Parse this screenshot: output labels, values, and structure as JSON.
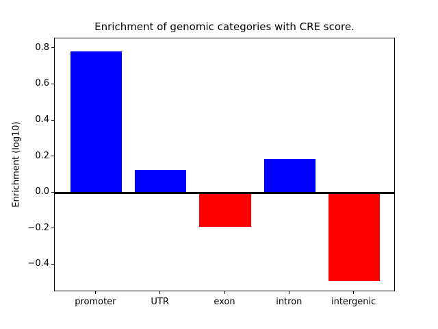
{
  "chart_data": {
    "type": "bar",
    "title": "Enrichment of genomic categories with CRE score.",
    "xlabel": "",
    "ylabel": "Enrichment (log10)",
    "categories": [
      "promoter",
      "UTR",
      "exon",
      "intron",
      "intergenic"
    ],
    "values": [
      0.785,
      0.125,
      -0.19,
      0.185,
      -0.49
    ],
    "bar_colors": [
      "#0000ff",
      "#0000ff",
      "#ff0000",
      "#0000ff",
      "#ff0000"
    ],
    "positive_color": "#0000ff",
    "negative_color": "#ff0000",
    "yticks": [
      0.8,
      0.6,
      0.4,
      0.2,
      0.0,
      -0.2,
      -0.4
    ],
    "ytick_labels": [
      "0.8",
      "0.6",
      "0.4",
      "0.2",
      "0.0",
      "−0.2",
      "−0.4"
    ],
    "ylim": [
      -0.552,
      0.857
    ],
    "xlim": [
      -0.64,
      4.64
    ],
    "bar_width": 0.8,
    "zero_line": true,
    "grid": false,
    "legend": null,
    "axis_color": "#000000",
    "background_color": "#ffffff"
  }
}
